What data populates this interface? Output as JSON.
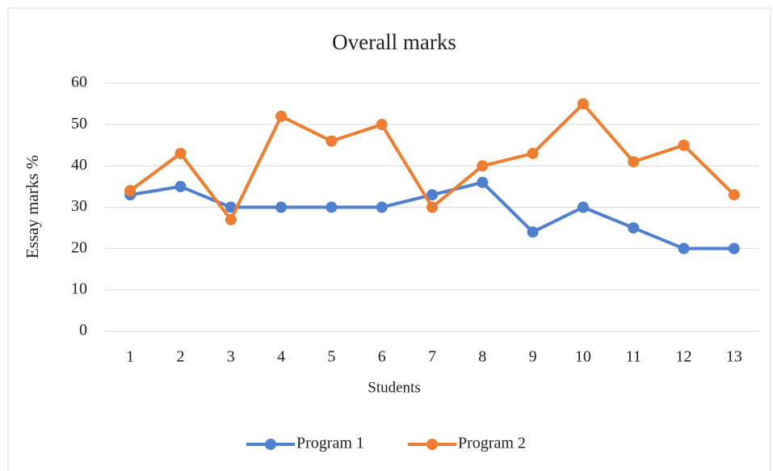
{
  "chart_data": {
    "type": "line",
    "title": "Overall marks",
    "x_label": "Students",
    "y_label": "Essay marks %",
    "categories": [
      "1",
      "2",
      "3",
      "4",
      "5",
      "6",
      "7",
      "8",
      "9",
      "10",
      "11",
      "12",
      "13"
    ],
    "series": [
      {
        "name": "Program 1",
        "color": "#4f7fcf",
        "values": [
          33,
          35,
          30,
          30,
          30,
          30,
          33,
          36,
          24,
          30,
          25,
          20,
          20
        ]
      },
      {
        "name": "Program 2",
        "color": "#ed7d31",
        "values": [
          34,
          43,
          27,
          52,
          46,
          50,
          30,
          40,
          43,
          55,
          41,
          45,
          33
        ]
      }
    ],
    "ylim": [
      0,
      60
    ],
    "yticks": [
      0,
      10,
      20,
      30,
      40,
      50,
      60
    ],
    "grid": true,
    "legend": "bottom"
  }
}
